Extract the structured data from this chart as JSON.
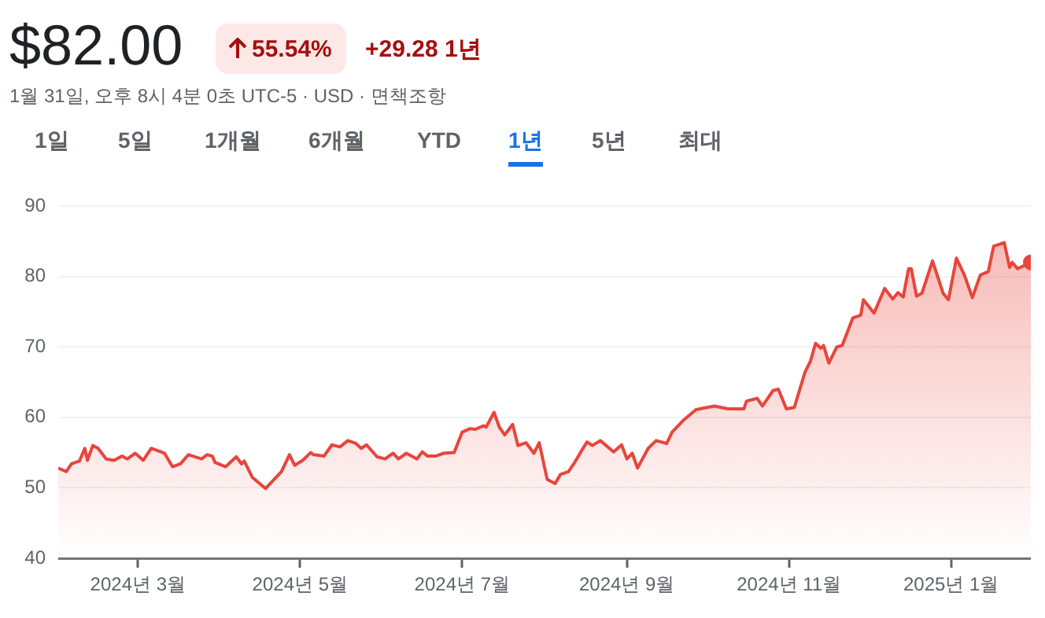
{
  "chart_data": {
    "type": "area",
    "title": "$82.00",
    "subtitle": "1월 31일, 오후 8시 4분 0초 UTC-5 · USD · 면책조항",
    "annotations": [
      "55.54%",
      "+29.28 1년",
      "1일",
      "5일",
      "1개월",
      "6개월",
      "YTD",
      "1년",
      "5년",
      "최대"
    ],
    "x": [
      "2024-01-31",
      "2024-02-03",
      "2024-02-05",
      "2024-02-08",
      "2024-02-10",
      "2024-02-11",
      "2024-02-13",
      "2024-02-15",
      "2024-02-18",
      "2024-02-21",
      "2024-02-24",
      "2024-02-26",
      "2024-02-29",
      "2024-03-03",
      "2024-03-06",
      "2024-03-11",
      "2024-03-14",
      "2024-03-17",
      "2024-03-20",
      "2024-03-25",
      "2024-03-27",
      "2024-03-29",
      "2024-03-30",
      "2024-04-03",
      "2024-04-07",
      "2024-04-09",
      "2024-04-10",
      "2024-04-13",
      "2024-04-18",
      "2024-04-24",
      "2024-04-27",
      "2024-04-29",
      "2024-05-02",
      "2024-05-05",
      "2024-05-06",
      "2024-05-10",
      "2024-05-13",
      "2024-05-16",
      "2024-05-19",
      "2024-05-22",
      "2024-05-24",
      "2024-05-26",
      "2024-05-30",
      "2024-06-02",
      "2024-06-05",
      "2024-06-07",
      "2024-06-10",
      "2024-06-14",
      "2024-06-16",
      "2024-06-18",
      "2024-06-21",
      "2024-06-24",
      "2024-06-28",
      "2024-07-01",
      "2024-07-04",
      "2024-07-06",
      "2024-07-09",
      "2024-07-10",
      "2024-07-13",
      "2024-07-15",
      "2024-07-17",
      "2024-07-20",
      "2024-07-22",
      "2024-07-25",
      "2024-07-28",
      "2024-07-30",
      "2024-08-02",
      "2024-08-05",
      "2024-08-07",
      "2024-08-10",
      "2024-08-12",
      "2024-08-15",
      "2024-08-17",
      "2024-08-19",
      "2024-08-22",
      "2024-08-27",
      "2024-08-30",
      "2024-09-01",
      "2024-09-03",
      "2024-09-05",
      "2024-09-09",
      "2024-09-12",
      "2024-09-16",
      "2024-09-18",
      "2024-09-22",
      "2024-09-27",
      "2024-10-01",
      "2024-10-04",
      "2024-10-09",
      "2024-10-15",
      "2024-10-16",
      "2024-10-20",
      "2024-10-22",
      "2024-10-26",
      "2024-10-28",
      "2024-10-31",
      "2024-11-03",
      "2024-11-07",
      "2024-11-09",
      "2024-11-11",
      "2024-11-13",
      "2024-11-14",
      "2024-11-16",
      "2024-11-19",
      "2024-11-21",
      "2024-11-25",
      "2024-11-28",
      "2024-11-29",
      "2024-12-03",
      "2024-12-07",
      "2024-12-10",
      "2024-12-12",
      "2024-12-14",
      "2024-12-16",
      "2024-12-17",
      "2024-12-19",
      "2024-12-21",
      "2024-12-25",
      "2024-12-29",
      "2024-12-31",
      "2025-01-03",
      "2025-01-06",
      "2025-01-09",
      "2025-01-12",
      "2025-01-15",
      "2025-01-17",
      "2025-01-21",
      "2025-01-23",
      "2025-01-24",
      "2025-01-26",
      "2025-01-31"
    ],
    "values": [
      52.8,
      52.3,
      53.4,
      53.8,
      55.6,
      53.9,
      56.0,
      55.6,
      54.1,
      53.9,
      54.5,
      54.1,
      54.9,
      53.9,
      55.6,
      54.9,
      53.0,
      53.4,
      54.7,
      54.1,
      54.7,
      54.5,
      53.6,
      53.0,
      54.4,
      53.4,
      53.8,
      51.5,
      49.9,
      52.3,
      54.7,
      53.2,
      53.9,
      55.0,
      54.7,
      54.5,
      56.1,
      55.8,
      56.7,
      56.3,
      55.6,
      56.1,
      54.4,
      54.1,
      54.9,
      54.1,
      54.9,
      54.1,
      55.1,
      54.5,
      54.5,
      54.9,
      55.0,
      57.9,
      58.4,
      58.3,
      58.8,
      58.6,
      60.7,
      58.6,
      57.5,
      59.0,
      56.0,
      56.4,
      54.9,
      56.4,
      51.2,
      50.6,
      51.9,
      52.3,
      53.4,
      55.3,
      56.5,
      56.0,
      56.7,
      55.1,
      56.1,
      54.1,
      54.9,
      52.8,
      55.6,
      56.7,
      56.3,
      57.9,
      59.5,
      61.1,
      61.4,
      61.6,
      61.2,
      61.2,
      62.3,
      62.7,
      61.6,
      63.8,
      64.0,
      61.2,
      61.4,
      66.4,
      67.9,
      70.5,
      69.8,
      70.2,
      67.7,
      70.0,
      70.2,
      74.1,
      74.5,
      76.7,
      74.8,
      78.3,
      76.8,
      77.7,
      77.1,
      81.1,
      81.1,
      77.2,
      77.6,
      82.2,
      77.6,
      76.7,
      82.6,
      80.2,
      77.0,
      80.2,
      80.7,
      84.3,
      84.8,
      81.3,
      82.0,
      81.1,
      82.0
    ],
    "color": "#e8453c",
    "xlim": [
      "2024-01-31",
      "2025-01-31"
    ],
    "xticks": [
      {
        "value": "2024-03-01",
        "label": "2024년 3월"
      },
      {
        "value": "2024-05-01",
        "label": "2024년 5월"
      },
      {
        "value": "2024-07-01",
        "label": "2024년 7월"
      },
      {
        "value": "2024-09-01",
        "label": "2024년 9월"
      },
      {
        "value": "2024-11-01",
        "label": "2024년 11월"
      },
      {
        "value": "2025-01-01",
        "label": "2025년 1월"
      }
    ],
    "ylim": [
      40,
      90
    ],
    "yticks": [
      40,
      50,
      60,
      70,
      80,
      90
    ],
    "grid": "y",
    "legend": false
  }
}
